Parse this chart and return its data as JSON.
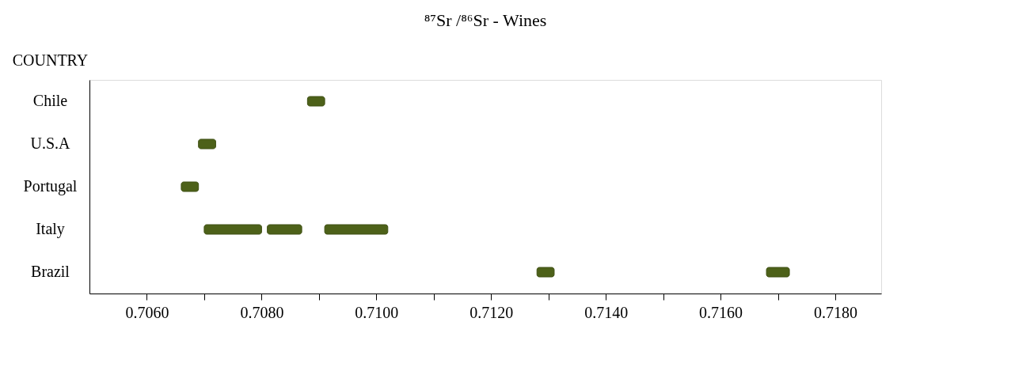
{
  "chart_data": {
    "type": "bar",
    "orientation": "horizontal",
    "title": "⁸⁷Sr /⁸⁶Sr - Wines",
    "ylabel": "COUNTRY",
    "categories": [
      "Chile",
      "U.S.A",
      "Portugal",
      "Italy",
      "Brazil"
    ],
    "series": [
      {
        "color": "#4d6119",
        "base": [
          0.7088,
          0.7069,
          0.7066,
          0.707,
          0.7128
        ],
        "values": [
          0.0003,
          0.0003,
          0.0003,
          0.001,
          0.0003
        ]
      },
      {
        "color": "#4d6119",
        "base": [
          null,
          null,
          null,
          0.7081,
          0.7168
        ],
        "values": [
          null,
          null,
          null,
          0.0006,
          0.0004
        ]
      },
      {
        "color": "#4d6119",
        "base": [
          null,
          null,
          null,
          0.7091,
          null
        ],
        "values": [
          null,
          null,
          null,
          0.0011,
          null
        ]
      }
    ],
    "xlim": [
      0.705,
      0.7188
    ],
    "xticks": [
      {
        "value": 0.706,
        "label": "0.7060"
      },
      {
        "value": 0.707,
        "label": null
      },
      {
        "value": 0.708,
        "label": "0.7080"
      },
      {
        "value": 0.709,
        "label": null
      },
      {
        "value": 0.71,
        "label": "0.7100"
      },
      {
        "value": 0.711,
        "label": null
      },
      {
        "value": 0.712,
        "label": "0.7120"
      },
      {
        "value": 0.713,
        "label": null
      },
      {
        "value": 0.714,
        "label": "0.7140"
      },
      {
        "value": 0.715,
        "label": null
      },
      {
        "value": 0.716,
        "label": "0.7160"
      },
      {
        "value": 0.717,
        "label": null
      },
      {
        "value": 0.718,
        "label": "0.7180"
      }
    ],
    "grid": false,
    "legend": false
  }
}
